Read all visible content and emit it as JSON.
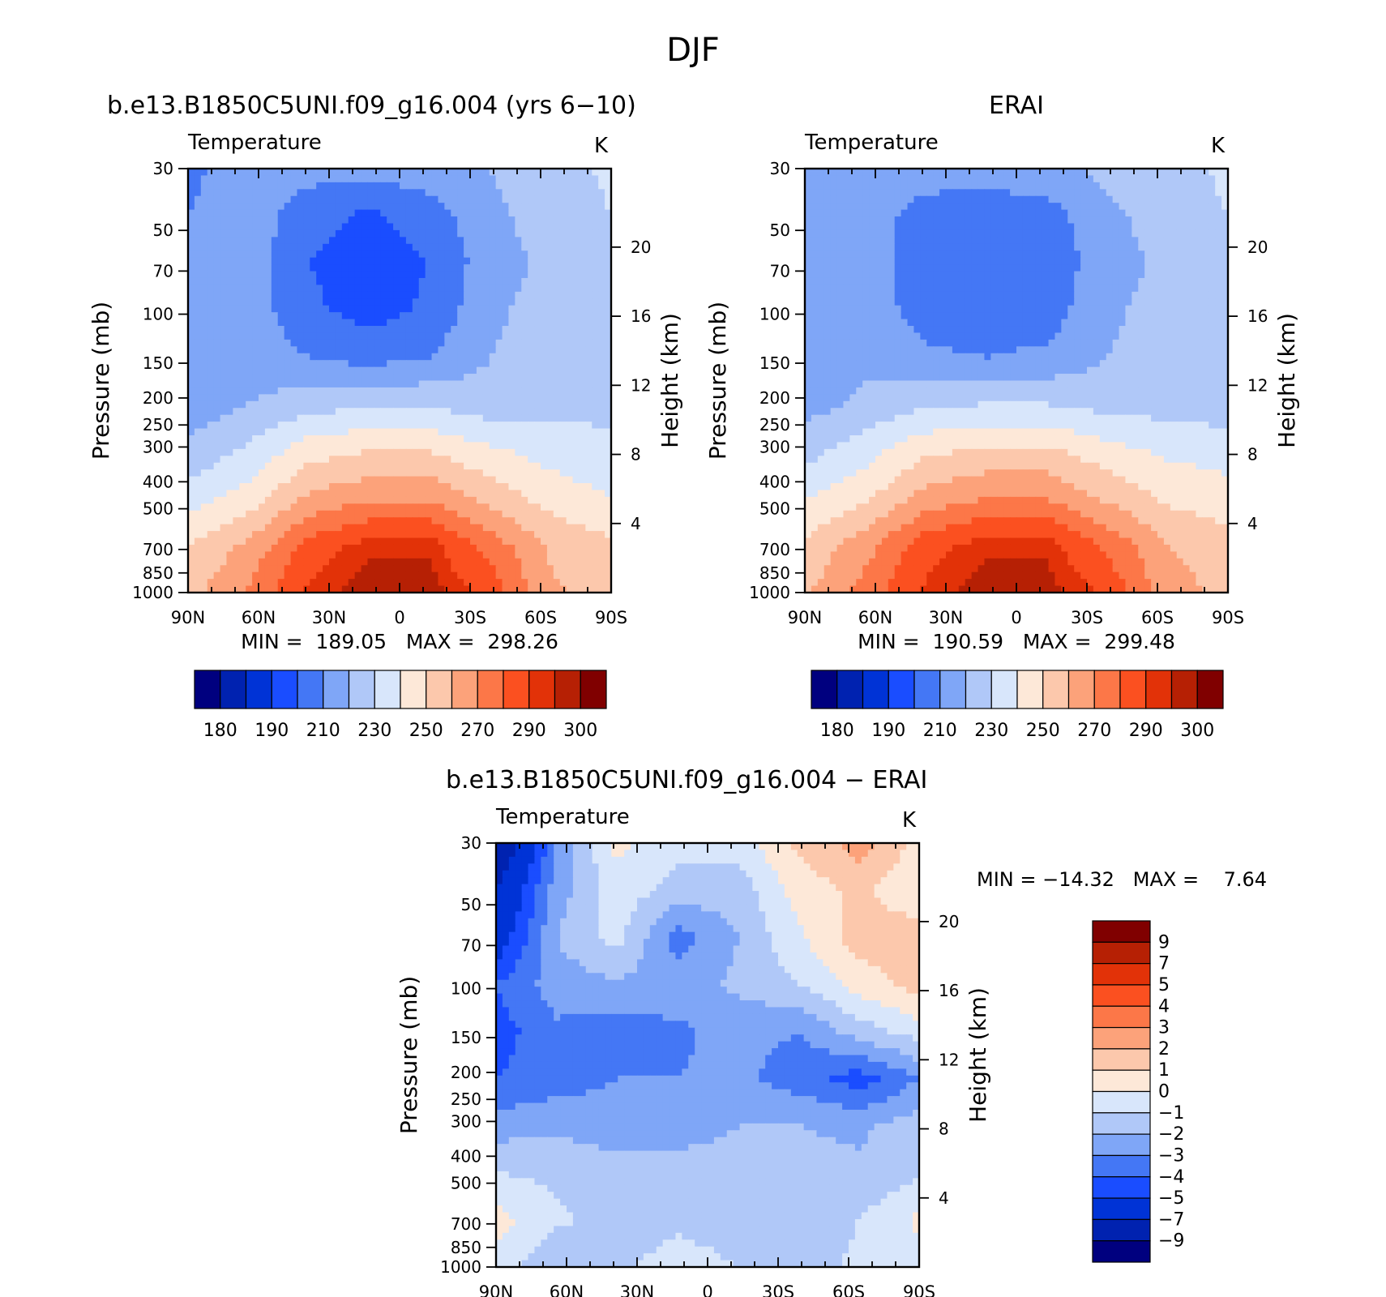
{
  "figure_title": "DJF",
  "chart_data": [
    {
      "type": "heatmap",
      "id": "model",
      "title": "b.e13.B1850C5UNI.f09_g16.004 (yrs 6−10)",
      "variable": "Temperature",
      "units": "K",
      "ylabel": "Pressure (mb)",
      "y2label": "Height (km)",
      "x_ticks": [
        "90N",
        "60N",
        "30N",
        "0",
        "30S",
        "60S",
        "90S"
      ],
      "x_values": [
        90,
        60,
        30,
        0,
        -30,
        -60,
        -90
      ],
      "y_ticks": [
        30,
        50,
        70,
        100,
        150,
        200,
        250,
        300,
        400,
        500,
        700,
        850,
        1000
      ],
      "y_scale": "log",
      "y2_ticks": [
        4,
        8,
        12,
        16,
        20
      ],
      "min": 189.05,
      "max": 298.26,
      "stats_text": "MIN =  189.05   MAX =  298.26",
      "levels": [
        180,
        185,
        190,
        200,
        210,
        220,
        230,
        240,
        250,
        260,
        270,
        280,
        290,
        295,
        300
      ],
      "colorbar_labels": [
        "180",
        "190",
        "210",
        "230",
        "250",
        "270",
        "290",
        "300"
      ],
      "colors": [
        "#00007f",
        "#0022b0",
        "#0033d6",
        "#1a4dff",
        "#4477f5",
        "#7fa6f7",
        "#b0c8f8",
        "#d8e6fb",
        "#fde8d8",
        "#fcc8ac",
        "#fca27a",
        "#fc7748",
        "#fb5020",
        "#e23208",
        "#b62004",
        "#800000"
      ],
      "field": [
        [
          208,
          214,
          214,
          214,
          216,
          220,
          225,
          232
        ],
        [
          210,
          216,
          204,
          198,
          205,
          218,
          224,
          230
        ],
        [
          210,
          216,
          200,
          194,
          200,
          216,
          222,
          230
        ],
        [
          212,
          216,
          202,
          196,
          202,
          218,
          224,
          228
        ],
        [
          212,
          216,
          210,
          206,
          210,
          220,
          224,
          228
        ],
        [
          214,
          220,
          226,
          228,
          228,
          224,
          226,
          228
        ],
        [
          222,
          232,
          246,
          250,
          250,
          242,
          236,
          232
        ],
        [
          236,
          244,
          262,
          268,
          268,
          256,
          246,
          240
        ],
        [
          250,
          262,
          284,
          294,
          294,
          276,
          258,
          252
        ],
        [
          256,
          272,
          292,
          298,
          298,
          286,
          262,
          256
        ]
      ]
    },
    {
      "type": "heatmap",
      "id": "obs",
      "title": "ERAI",
      "variable": "Temperature",
      "units": "K",
      "ylabel": "Pressure (mb)",
      "y2label": "Height (km)",
      "x_ticks": [
        "90N",
        "60N",
        "30N",
        "0",
        "30S",
        "60S",
        "90S"
      ],
      "x_values": [
        90,
        60,
        30,
        0,
        -30,
        -60,
        -90
      ],
      "y_ticks": [
        30,
        50,
        70,
        100,
        150,
        200,
        250,
        300,
        400,
        500,
        700,
        850,
        1000
      ],
      "y_scale": "log",
      "y2_ticks": [
        4,
        8,
        12,
        16,
        20
      ],
      "min": 190.59,
      "max": 299.48,
      "stats_text": "MIN =  190.59   MAX =  299.48",
      "levels": [
        180,
        185,
        190,
        200,
        210,
        220,
        230,
        240,
        250,
        260,
        270,
        280,
        290,
        295,
        300
      ],
      "colorbar_labels": [
        "180",
        "190",
        "210",
        "230",
        "250",
        "270",
        "290",
        "300"
      ],
      "colors": [
        "#00007f",
        "#0022b0",
        "#0033d6",
        "#1a4dff",
        "#4477f5",
        "#7fa6f7",
        "#b0c8f8",
        "#d8e6fb",
        "#fde8d8",
        "#fcc8ac",
        "#fca27a",
        "#fc7748",
        "#fb5020",
        "#e23208",
        "#b62004",
        "#800000"
      ],
      "field": [
        [
          210,
          216,
          216,
          216,
          218,
          222,
          226,
          232
        ],
        [
          212,
          216,
          205,
          202,
          205,
          218,
          224,
          230
        ],
        [
          212,
          216,
          203,
          201,
          203,
          216,
          222,
          230
        ],
        [
          214,
          216,
          205,
          203,
          205,
          218,
          224,
          228
        ],
        [
          214,
          218,
          212,
          210,
          212,
          220,
          224,
          222
        ],
        [
          216,
          222,
          228,
          230,
          230,
          226,
          226,
          224
        ],
        [
          226,
          236,
          248,
          252,
          252,
          244,
          238,
          236
        ],
        [
          240,
          248,
          264,
          270,
          270,
          258,
          248,
          244
        ],
        [
          252,
          266,
          286,
          294,
          294,
          278,
          260,
          254
        ],
        [
          258,
          274,
          292,
          298,
          298,
          288,
          264,
          258
        ]
      ]
    },
    {
      "type": "heatmap",
      "id": "diff",
      "title": "b.e13.B1850C5UNI.f09_g16.004 − ERAI",
      "variable": "Temperature",
      "units": "K",
      "ylabel": "Pressure (mb)",
      "y2label": "Height (km)",
      "x_ticks": [
        "90N",
        "60N",
        "30N",
        "0",
        "30S",
        "60S",
        "90S"
      ],
      "x_values": [
        90,
        60,
        30,
        0,
        -30,
        -60,
        -90
      ],
      "y_ticks": [
        30,
        50,
        70,
        100,
        150,
        200,
        250,
        300,
        400,
        500,
        700,
        850,
        1000
      ],
      "y_scale": "log",
      "y2_ticks": [
        4,
        8,
        12,
        16,
        20
      ],
      "min": -14.32,
      "max": 7.64,
      "stats_text": "MIN = −14.32   MAX =    7.64",
      "levels": [
        -9,
        -7,
        -5,
        -4,
        -3,
        -2,
        -1,
        0,
        1,
        2,
        3,
        4,
        5,
        7,
        9
      ],
      "colorbar_labels": [
        "9",
        "7",
        "5",
        "4",
        "3",
        "2",
        "1",
        "0",
        "−1",
        "−2",
        "−3",
        "−4",
        "−5",
        "−7",
        "−9"
      ],
      "colors": [
        "#00007f",
        "#0022b0",
        "#0033d6",
        "#1a4dff",
        "#4477f5",
        "#7fa6f7",
        "#b0c8f8",
        "#d8e6fb",
        "#fde8d8",
        "#fcc8ac",
        "#fca27a",
        "#fc7748",
        "#fb5020",
        "#e23208",
        "#b62004",
        "#800000"
      ],
      "field": [
        [
          -9.0,
          -3.0,
          0.3,
          -0.6,
          -0.5,
          1.2,
          2.5,
          0.6
        ],
        [
          -7.0,
          -2.5,
          -0.4,
          -1.4,
          -1.6,
          0.4,
          1.2,
          0.2
        ],
        [
          -6.0,
          -2.0,
          -0.6,
          -3.5,
          -2.0,
          -0.2,
          1.5,
          1.5
        ],
        [
          -4.0,
          -2.5,
          -2.2,
          -2.4,
          -1.8,
          -1.0,
          0.4,
          1.5
        ],
        [
          -4.5,
          -3.2,
          -3.5,
          -3.2,
          -2.6,
          -3.0,
          -1.5,
          -0.5
        ],
        [
          -4.0,
          -3.5,
          -3.0,
          -3.0,
          -2.8,
          -3.5,
          -4.5,
          -3.0
        ],
        [
          -2.5,
          -2.2,
          -2.6,
          -2.4,
          -2.0,
          -2.0,
          -2.2,
          -1.5
        ],
        [
          -1.0,
          -1.2,
          -1.6,
          -1.6,
          -1.7,
          -1.6,
          -1.8,
          -1.2
        ],
        [
          0.4,
          -0.8,
          -1.4,
          -1.2,
          -1.4,
          -1.6,
          -1.0,
          0.2
        ],
        [
          -0.5,
          -2.0,
          -1.2,
          -0.6,
          -1.0,
          -1.5,
          -0.8,
          -0.5
        ]
      ]
    }
  ]
}
